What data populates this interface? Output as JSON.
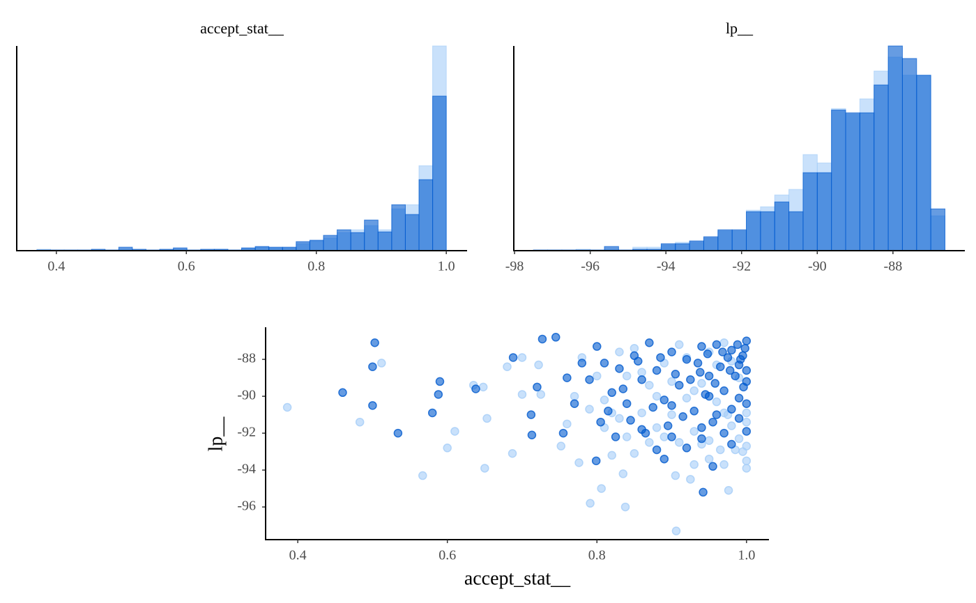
{
  "chart_data": [
    {
      "type": "histogram",
      "title": "accept_stat__",
      "bins": [
        0.37,
        0.391,
        0.412,
        0.433,
        0.454,
        0.475,
        0.496,
        0.517,
        0.538,
        0.559,
        0.58,
        0.601,
        0.622,
        0.643,
        0.664,
        0.685,
        0.706,
        0.727,
        0.748,
        0.769,
        0.79,
        0.811,
        0.832,
        0.853,
        0.874,
        0.895,
        0.916,
        0.937,
        0.958,
        0.979,
        1.0
      ],
      "series": [
        {
          "color": "#a5cdf8",
          "values": [
            2,
            1,
            1,
            1,
            1,
            1,
            2,
            1,
            1,
            1,
            2,
            1,
            1,
            2,
            1,
            3,
            5,
            4,
            4,
            10,
            14,
            18,
            26,
            30,
            36,
            30,
            60,
            66,
            122,
            294
          ]
        },
        {
          "color": "#005ace",
          "values": [
            1,
            1,
            1,
            1,
            2,
            1,
            5,
            2,
            1,
            2,
            4,
            1,
            2,
            2,
            1,
            4,
            6,
            5,
            5,
            13,
            15,
            22,
            30,
            26,
            44,
            27,
            66,
            52,
            102,
            222
          ]
        }
      ],
      "xlim": [
        0.339,
        1.032
      ],
      "ylim": [
        0,
        294
      ],
      "xticks": [
        0.4,
        0.6,
        0.8,
        {
          "value": 1,
          "label": "1.0"
        }
      ]
    },
    {
      "type": "histogram",
      "title": "lp__",
      "bins": [
        -97.5,
        -97.125,
        -96.75,
        -96.375,
        -96.0,
        -95.625,
        -95.25,
        -94.875,
        -94.5,
        -94.125,
        -93.75,
        -93.375,
        -93.0,
        -92.625,
        -92.25,
        -91.875,
        -91.5,
        -91.125,
        -90.75,
        -90.375,
        -90.0,
        -89.625,
        -89.25,
        -88.875,
        -88.5,
        -88.125,
        -87.75,
        -87.375,
        -87.0,
        -86.625
      ],
      "series": [
        {
          "color": "#a5cdf8",
          "values": [
            1,
            1,
            1,
            2,
            1,
            2,
            1,
            5,
            5,
            8,
            12,
            12,
            18,
            28,
            28,
            58,
            63,
            80,
            88,
            138,
            126,
            204,
            196,
            218,
            258,
            278,
            252,
            252,
            50
          ]
        },
        {
          "color": "#005ace",
          "values": [
            1,
            1,
            1,
            1,
            1,
            6,
            1,
            2,
            2,
            10,
            10,
            14,
            20,
            30,
            30,
            56,
            56,
            70,
            56,
            112,
            112,
            202,
            198,
            198,
            238,
            294,
            276,
            252,
            60
          ]
        }
      ],
      "xlim": [
        -98.02,
        -86.1
      ],
      "ylim": [
        0,
        294
      ],
      "xticks": [
        -98,
        -96,
        -94,
        -92,
        -90,
        -88
      ]
    },
    {
      "type": "scatter",
      "xlabel": "accept_stat__",
      "ylabel": "lp__",
      "series": [
        {
          "color": "#a5cdf8",
          "x": [
            0.386,
            0.483,
            0.512,
            0.567,
            0.6,
            0.61,
            0.635,
            0.648,
            0.65,
            0.653,
            0.68,
            0.687,
            0.7,
            0.7,
            0.722,
            0.725,
            0.752,
            0.776,
            0.791,
            0.806,
            0.838,
            0.906,
            0.905,
            0.925,
            0.976,
            0.835,
            0.82,
            0.95,
            0.97,
            1.0,
            1.0,
            0.93,
            0.78,
            0.8,
            0.81,
            0.83,
            0.84,
            0.85,
            0.86,
            0.87,
            0.88,
            0.89,
            0.9,
            0.91,
            0.92,
            0.93,
            0.94,
            0.95,
            0.96,
            0.97,
            0.98,
            0.99,
            1.0,
            1.0,
            1.0,
            0.99,
            0.98,
            0.97,
            0.96,
            0.95,
            0.94,
            0.93,
            0.92,
            0.91,
            0.9,
            0.89,
            0.88,
            0.87,
            0.86,
            0.85,
            0.84,
            0.83,
            0.82,
            0.81,
            0.79,
            0.77,
            0.76,
            0.995,
            0.985,
            0.975,
            0.965
          ],
          "y": [
            -90.6,
            -91.4,
            -88.2,
            -94.3,
            -92.8,
            -91.9,
            -89.4,
            -89.5,
            -93.9,
            -91.2,
            -88.4,
            -93.1,
            -87.9,
            -89.9,
            -88.3,
            -89.9,
            -92.7,
            -93.6,
            -95.8,
            -95,
            -96,
            -97.3,
            -94.3,
            -94.5,
            -95.1,
            -94.2,
            -93.2,
            -93.4,
            -93.7,
            -93.9,
            -93.5,
            -93.7,
            -87.9,
            -88.9,
            -90.2,
            -91.2,
            -92.2,
            -87.4,
            -90.9,
            -89.4,
            -91.7,
            -88.2,
            -91.0,
            -87.2,
            -90.1,
            -91.9,
            -89.3,
            -92.4,
            -88.3,
            -90.9,
            -91.6,
            -92.3,
            -91.4,
            -92.7,
            -90.9,
            -89.0,
            -88.1,
            -87.1,
            -90.3,
            -87.6,
            -92.6,
            -89.7,
            -87.9,
            -92.5,
            -89.2,
            -92.2,
            -90.0,
            -92.5,
            -88.7,
            -93.1,
            -88.9,
            -87.6,
            -90.9,
            -91.7,
            -90.7,
            -90.0,
            -91.5,
            -93.0,
            -92.9,
            -91.0,
            -92.9
          ]
        },
        {
          "color": "#005ace",
          "x": [
            0.503,
            0.5,
            0.46,
            0.5,
            0.534,
            0.59,
            0.588,
            0.58,
            0.638,
            0.688,
            0.727,
            0.745,
            0.72,
            0.712,
            0.713,
            0.755,
            0.799,
            0.89,
            0.942,
            0.955,
            0.9,
            0.98,
            0.94,
            0.8,
            0.81,
            0.82,
            0.83,
            0.84,
            0.85,
            0.86,
            0.87,
            0.88,
            0.89,
            0.9,
            0.91,
            0.92,
            0.93,
            0.94,
            0.95,
            0.96,
            0.97,
            0.98,
            0.99,
            1.0,
            1.0,
            1.0,
            0.99,
            0.995,
            0.985,
            0.975,
            0.965,
            0.955,
            0.945,
            0.935,
            0.925,
            0.915,
            0.905,
            0.895,
            0.885,
            0.875,
            0.865,
            0.855,
            0.845,
            0.835,
            0.825,
            0.815,
            0.805,
            0.79,
            0.78,
            0.77,
            0.76,
            1.0,
            1.0,
            0.99,
            0.98,
            0.97,
            0.96,
            0.95,
            0.94,
            0.92,
            0.9,
            0.88,
            0.86,
            0.998,
            0.992,
            0.996,
            0.988,
            0.978,
            0.968,
            0.958,
            0.948,
            0.938
          ],
          "y": [
            -87.1,
            -88.4,
            -89.8,
            -90.5,
            -92,
            -89.2,
            -89.9,
            -90.9,
            -89.6,
            -87.9,
            -86.9,
            -86.8,
            -89.5,
            -91,
            -92.1,
            -92,
            -93.5,
            -93.4,
            -95.2,
            -93.8,
            -92.2,
            -92.6,
            -92.3,
            -87.3,
            -88.2,
            -89.8,
            -88.5,
            -90.4,
            -87.8,
            -89.1,
            -87.1,
            -88.6,
            -90.2,
            -87.6,
            -89.4,
            -88.0,
            -90.8,
            -87.3,
            -88.9,
            -87.2,
            -89.7,
            -87.5,
            -88.3,
            -87.0,
            -88.6,
            -89.2,
            -90.1,
            -87.8,
            -88.9,
            -87.9,
            -88.4,
            -91.4,
            -89.9,
            -88.2,
            -89.1,
            -91.1,
            -88.8,
            -91.6,
            -87.9,
            -90.6,
            -92.0,
            -88.1,
            -91.3,
            -89.6,
            -92.2,
            -90.8,
            -91.4,
            -89.1,
            -88.2,
            -90.4,
            -89.0,
            -90.4,
            -91.9,
            -91.2,
            -90.7,
            -92.0,
            -91.0,
            -90.0,
            -91.7,
            -92.8,
            -90.5,
            -92.9,
            -91.8,
            -87.4,
            -88.0,
            -89.5,
            -87.2,
            -88.6,
            -87.6,
            -89.3,
            -87.7,
            -88.7
          ]
        }
      ],
      "xlim": [
        0.357,
        1.03
      ],
      "ylim": [
        -97.77,
        -86.26
      ],
      "xticks": [
        0.4,
        0.6,
        0.8,
        {
          "value": 1,
          "label": "1.0"
        }
      ],
      "yticks": [
        -96,
        -94,
        -92,
        -90,
        -88
      ]
    }
  ]
}
